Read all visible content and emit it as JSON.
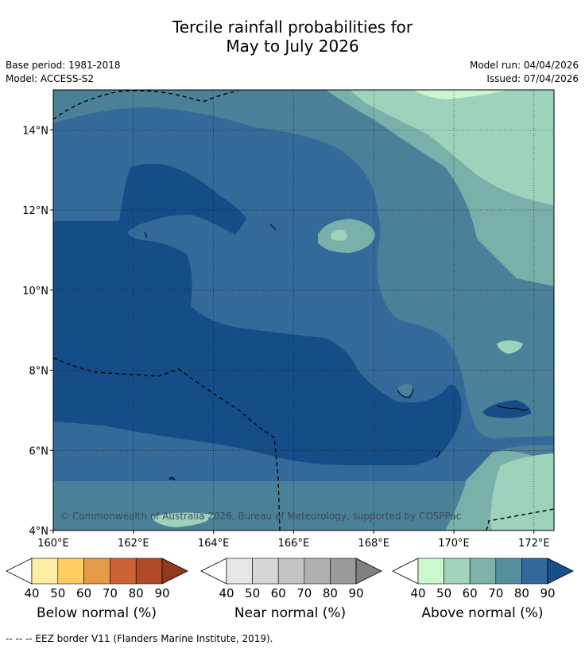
{
  "header": {
    "title_line1": "Tercile rainfall probabilities for",
    "title_line2": "May to July 2026",
    "base_period": "Base period: 1981-2018",
    "model": "Model: ACCESS-S2",
    "model_run": "Model run: 04/04/2026",
    "issued": "Issued: 07/04/2026"
  },
  "map": {
    "copyright": "© Commonwealth of Australia 2026, Bureau of Meteorology, supported by COSPPac",
    "lon_labels": [
      "160°E",
      "162°E",
      "164°E",
      "166°E",
      "168°E",
      "170°E",
      "172°E"
    ],
    "lat_labels": [
      "14°N",
      "12°N",
      "10°N",
      "8°N",
      "6°N",
      "4°N"
    ],
    "lon_range": [
      160,
      172.5
    ],
    "lat_range": [
      4,
      15
    ]
  },
  "colorbars": [
    {
      "label": "Below normal (%)",
      "ticks": [
        "40",
        "50",
        "60",
        "70",
        "80",
        "90"
      ],
      "colors": [
        "#ffffff",
        "#fdeca4",
        "#fdcc63",
        "#e49a4a",
        "#cd6234",
        "#b04a26",
        "#8f3a1e"
      ]
    },
    {
      "label": "Near normal (%)",
      "ticks": [
        "40",
        "50",
        "60",
        "70",
        "80",
        "90"
      ],
      "colors": [
        "#ffffff",
        "#e6e6e6",
        "#d6d6d6",
        "#c4c4c4",
        "#b0b0b0",
        "#9a9a9a",
        "#808080"
      ]
    },
    {
      "label": "Above normal (%)",
      "ticks": [
        "40",
        "50",
        "60",
        "70",
        "80",
        "90"
      ],
      "colors": [
        "#ffffff",
        "#ccf7cc",
        "#a2d4bb",
        "#7db3aa",
        "#56909e",
        "#33689b",
        "#184f88"
      ]
    }
  ],
  "footnote": "--  --  -- EEZ border V11 (Flanders Marine Institute, 2019)."
}
